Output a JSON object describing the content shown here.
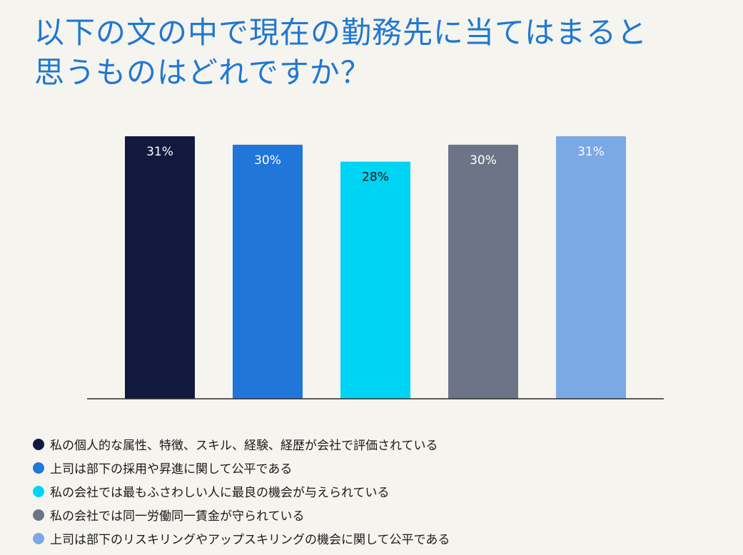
{
  "chart_data": {
    "type": "bar",
    "title_lines": [
      "以下の文の中で現在の勤務先に当てはまると",
      "思うものはどれですか？"
    ],
    "categories": [
      "私の個人的な属性、特徴、スキル、経験、経歴が会社で評価されている",
      "上司は部下の採用や昇進に関して公平である",
      "私の会社では最もふさわしい人に最良の機会が与えられている",
      "私の会社では同一労働同一賃金が守られている",
      "上司は部下のリスキリングやアップスキリングの機会に関して公平である"
    ],
    "values": [
      31,
      30,
      28,
      30,
      31
    ],
    "value_labels": [
      "31%",
      "30%",
      "28%",
      "30%",
      "31%"
    ],
    "colors": [
      "#111a3e",
      "#2176d9",
      "#00d4f5",
      "#6e7488",
      "#7aa9e6"
    ],
    "label_colors": [
      "#ffffff",
      "#ffffff",
      "#111111",
      "#ffffff",
      "#ffffff"
    ],
    "ylim": [
      0,
      31
    ],
    "grid": false,
    "legend_position": "bottom-left"
  }
}
